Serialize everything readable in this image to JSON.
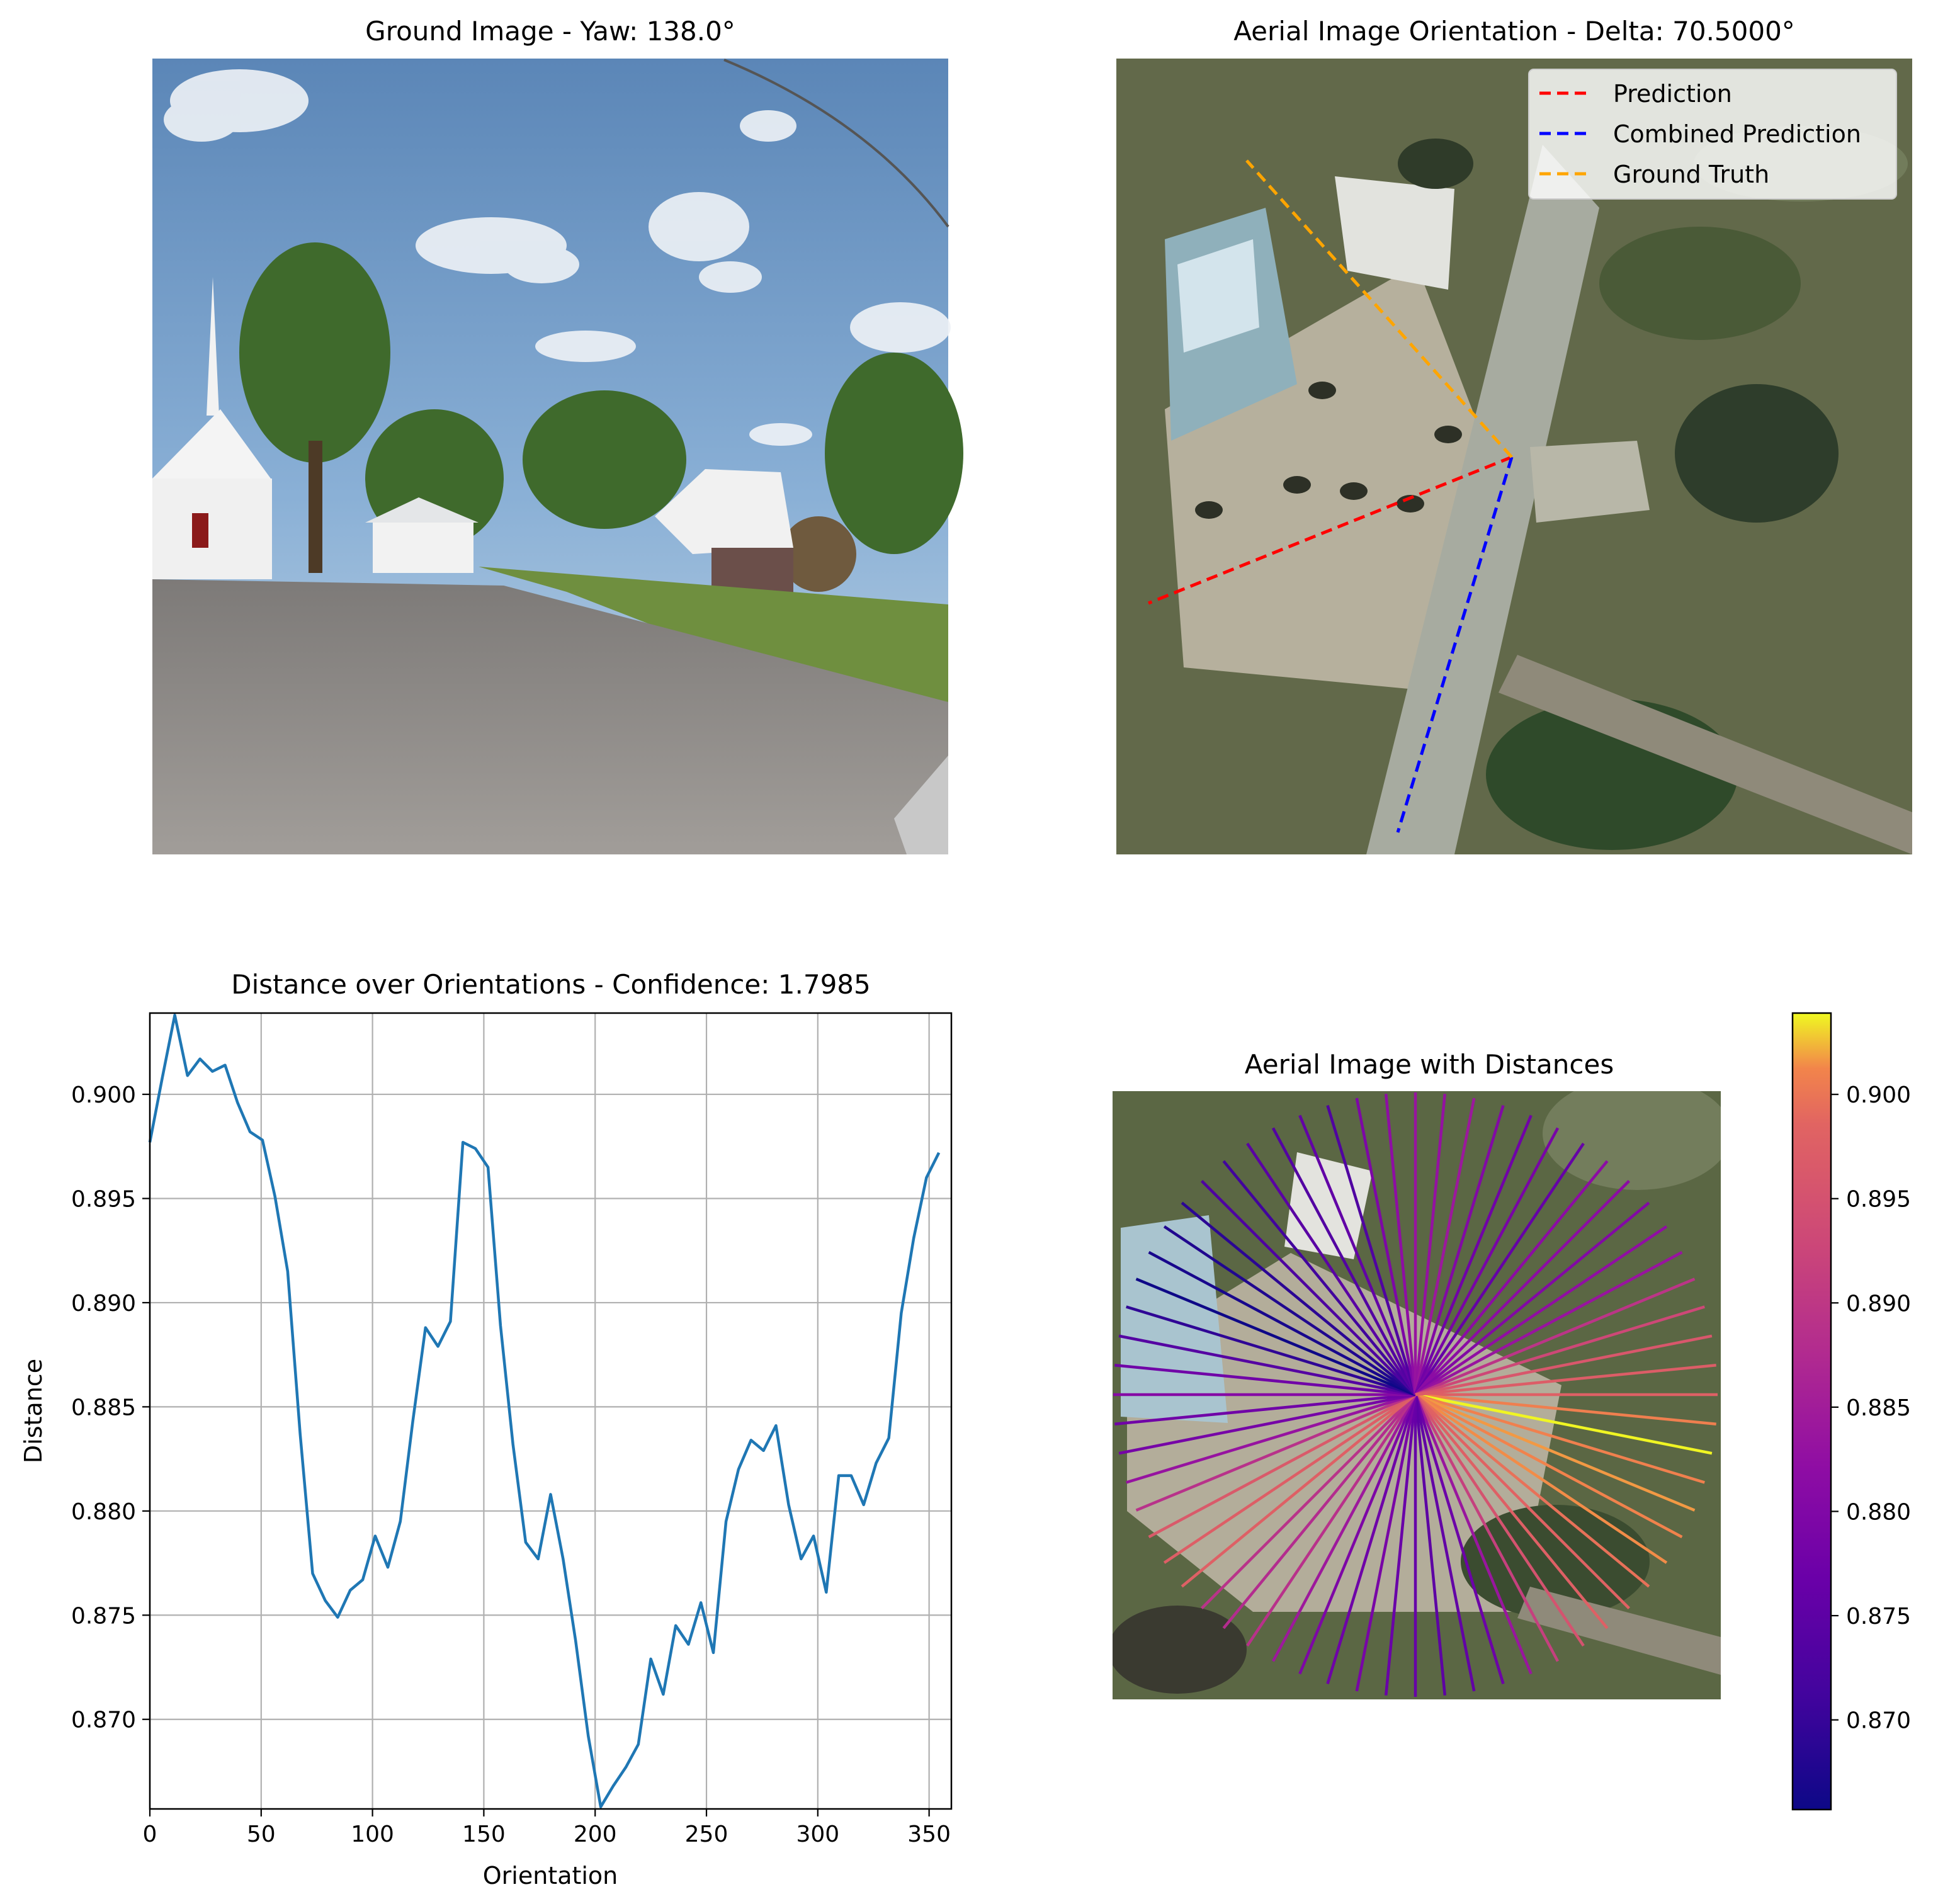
{
  "panels": {
    "ground": {
      "title": "Ground Image - Yaw: 138.0°"
    },
    "aerial": {
      "title": "Aerial Image Orientation - Delta: 70.5000°",
      "legend": [
        {
          "label": "Prediction",
          "color": "#ff0000"
        },
        {
          "label": "Combined Prediction",
          "color": "#0000ff"
        },
        {
          "label": "Ground Truth",
          "color": "#ffa500"
        }
      ],
      "legend_position": "top-right"
    },
    "distance_aerial": {
      "title": "Aerial Image with Distances"
    }
  },
  "colors": {
    "line": "#1f77b4",
    "grid": "#b0b0b0",
    "colormap": "plasma"
  },
  "chart_data": [
    {
      "type": "line",
      "title": "Distance over Orientations - Confidence: 1.7985",
      "xlabel": "Orientation",
      "ylabel": "Distance",
      "xlim": [
        0,
        360
      ],
      "ylim": [
        0.8657,
        0.9039
      ],
      "grid": true,
      "xticks": [
        "0",
        "50",
        "100",
        "150",
        "200",
        "250",
        "300",
        "350"
      ],
      "yticks": [
        "0.870",
        "0.875",
        "0.880",
        "0.885",
        "0.890",
        "0.895",
        "0.900"
      ],
      "x": [
        0,
        5.6,
        11.2,
        16.9,
        22.5,
        28.1,
        33.8,
        39.4,
        45,
        50.6,
        56.2,
        61.9,
        67.5,
        73.1,
        78.8,
        84.4,
        90,
        95.6,
        101.2,
        106.9,
        112.5,
        118.1,
        123.8,
        129.4,
        135,
        140.6,
        146.2,
        151.9,
        157.5,
        163.1,
        168.8,
        174.4,
        180,
        185.6,
        191.2,
        196.9,
        202.5,
        208.1,
        213.8,
        219.4,
        225,
        230.6,
        236.2,
        241.9,
        247.5,
        253.1,
        258.8,
        264.4,
        270,
        275.6,
        281.2,
        286.9,
        292.5,
        298.1,
        303.8,
        309.4,
        315,
        320.6,
        326.2,
        331.9,
        337.5,
        343.1,
        348.8,
        354.4
      ],
      "y": [
        0.8977,
        0.9008,
        0.9038,
        0.9009,
        0.9017,
        0.9011,
        0.9014,
        0.8996,
        0.8982,
        0.8978,
        0.8951,
        0.8915,
        0.8837,
        0.877,
        0.8757,
        0.8749,
        0.8762,
        0.8767,
        0.8788,
        0.8773,
        0.8795,
        0.8843,
        0.8888,
        0.8879,
        0.8891,
        0.8977,
        0.8974,
        0.8965,
        0.8889,
        0.8832,
        0.8785,
        0.8777,
        0.8808,
        0.8777,
        0.8738,
        0.8692,
        0.8658,
        0.8668,
        0.8677,
        0.8688,
        0.8729,
        0.8712,
        0.8745,
        0.8736,
        0.8756,
        0.8732,
        0.8795,
        0.882,
        0.8834,
        0.8829,
        0.8841,
        0.8803,
        0.8777,
        0.8788,
        0.8761,
        0.8817,
        0.8817,
        0.8803,
        0.8823,
        0.8835,
        0.8895,
        0.8931,
        0.896,
        0.8972
      ]
    },
    {
      "type": "heatmap",
      "title": "Aerial Image with Distances",
      "colorbar_range": [
        0.8657,
        0.9039
      ],
      "colorbar_ticks": [
        "0.870",
        "0.875",
        "0.880",
        "0.885",
        "0.890",
        "0.895",
        "0.900"
      ]
    }
  ]
}
